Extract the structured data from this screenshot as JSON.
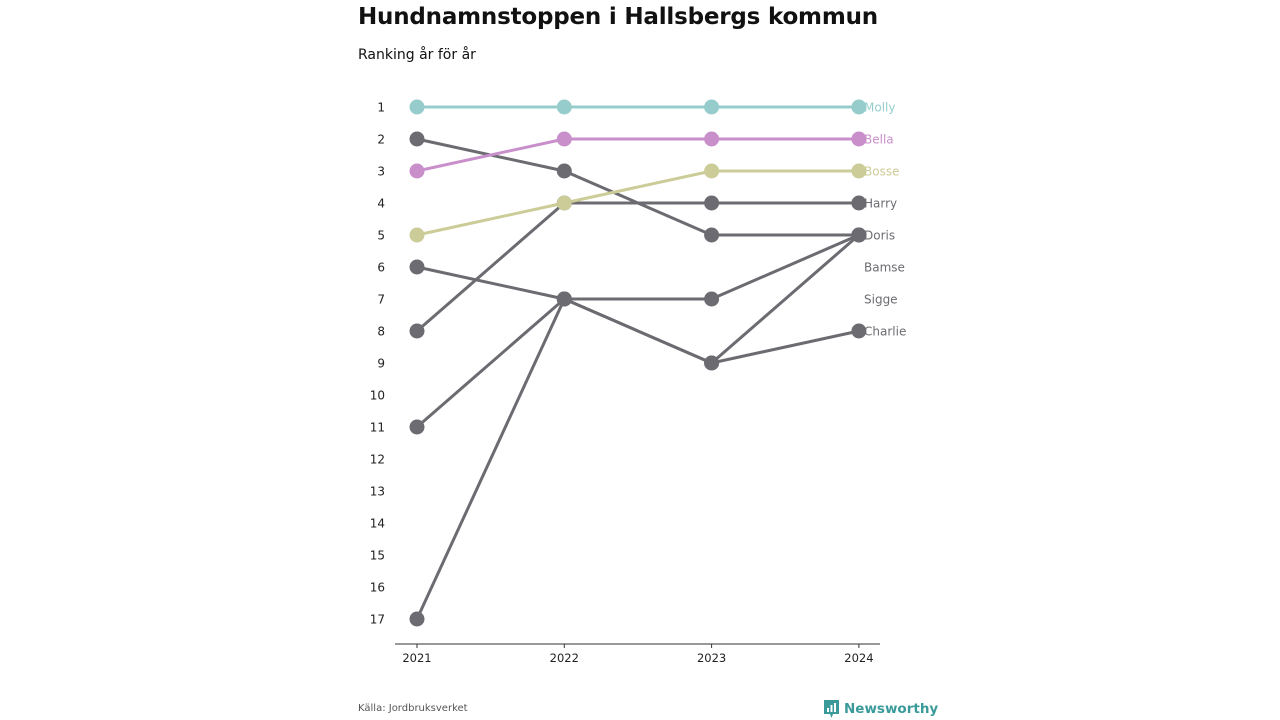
{
  "header": {
    "title": "Hundnamnstoppen i Hallsbergs kommun",
    "subtitle": "Ranking år för år"
  },
  "footer": {
    "source": "Källa: Jordbruksverket",
    "brand": "Newsworthy"
  },
  "colors": {
    "Molly": "#96cdcc",
    "Bella": "#c98fcb",
    "Bosse": "#cccc98",
    "default": "#6c6b71",
    "brand": "#3a9a9a",
    "axis": "#333333"
  },
  "chart_data": {
    "type": "line",
    "subtype": "bump",
    "x": [
      "2021",
      "2022",
      "2023",
      "2024"
    ],
    "y_ticks": [
      "1",
      "2",
      "3",
      "4",
      "5",
      "6",
      "7",
      "8",
      "9",
      "10",
      "11",
      "12",
      "13",
      "14",
      "15",
      "16",
      "17"
    ],
    "ylim": [
      1,
      17
    ],
    "y_reversed": true,
    "grid": false,
    "series": [
      {
        "name": "Molly",
        "values": [
          1,
          1,
          1,
          1
        ]
      },
      {
        "name": "Bella",
        "values": [
          3,
          2,
          2,
          2
        ]
      },
      {
        "name": "Bosse",
        "values": [
          5,
          4,
          3,
          3
        ]
      },
      {
        "name": "Harry",
        "values": [
          8,
          4,
          4,
          4
        ]
      },
      {
        "name": "Doris",
        "values": [
          2,
          3,
          5,
          5
        ]
      },
      {
        "name": "Bamse",
        "values": [
          6,
          7,
          7,
          5
        ]
      },
      {
        "name": "Sigge",
        "values": [
          11,
          7,
          9,
          5
        ]
      },
      {
        "name": "Charlie",
        "values": [
          17,
          7,
          9,
          8
        ]
      }
    ],
    "end_labels": [
      "Molly",
      "Bella",
      "Bosse",
      "Harry",
      "Doris",
      "Bamse",
      "Sigge",
      "Charlie"
    ]
  }
}
